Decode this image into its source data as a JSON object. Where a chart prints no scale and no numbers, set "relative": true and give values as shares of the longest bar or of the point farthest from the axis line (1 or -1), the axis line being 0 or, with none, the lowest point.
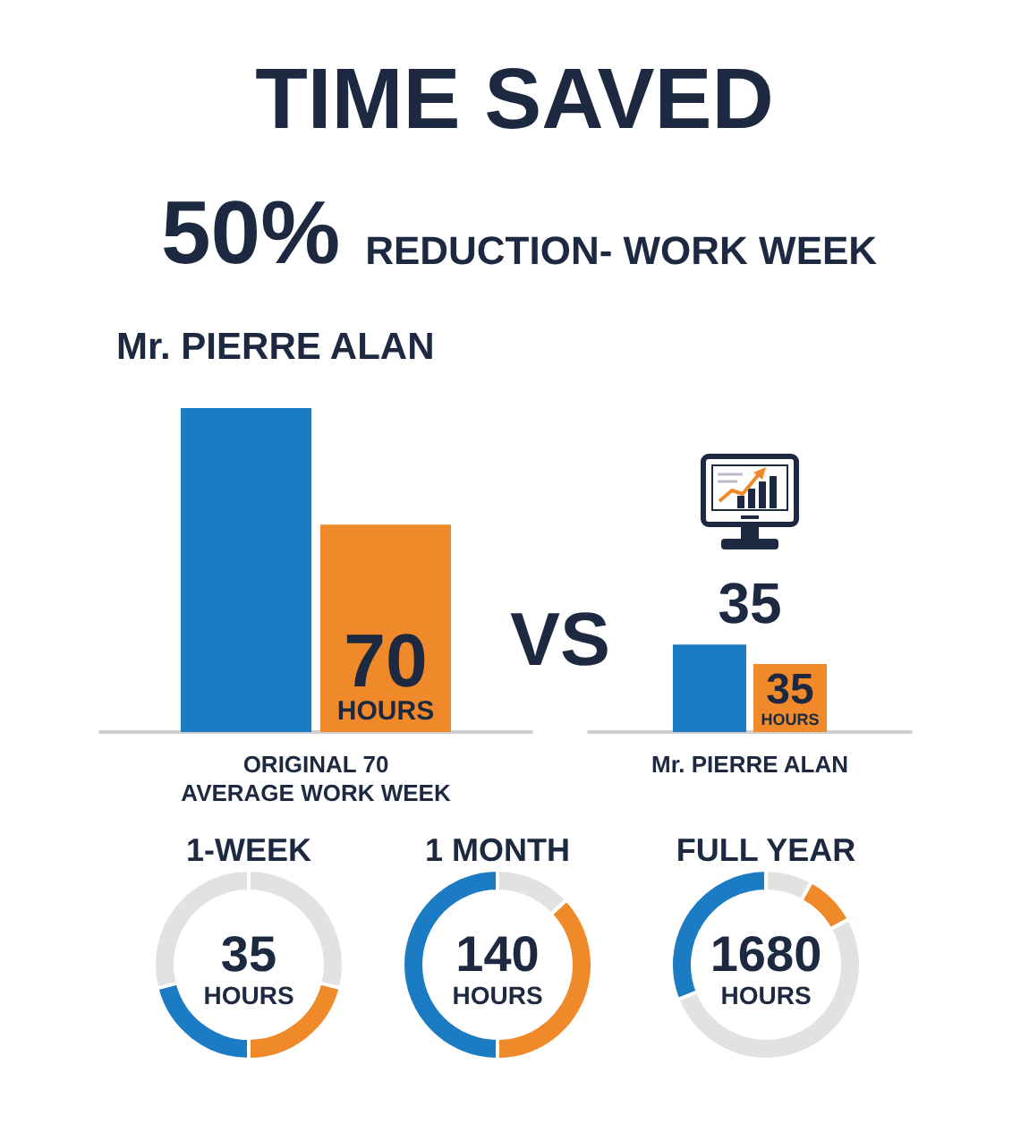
{
  "chart_data": [
    {
      "type": "bar",
      "title": "TIME SAVED",
      "annotations": [
        "50%",
        "REDUCTION- WORK WEEK",
        "Mr. PIERRE ALAN",
        "VS",
        "70\nHOURS",
        "35",
        "35\nHOURS"
      ],
      "categories": [
        "ORIGINAL 70\nAVERAGE WORK WEEK",
        "Mr. PIERRE ALAN"
      ],
      "relative": true,
      "series": [
        {
          "color": "#1b7cc4",
          "values": [
            1,
            0.27
          ]
        },
        {
          "color": "#f0892a",
          "values": [
            0.64,
            0.21
          ]
        }
      ]
    },
    {
      "type": "donut",
      "title": "1-WEEK",
      "categories": [
        null,
        null,
        null,
        null
      ],
      "values": [
        29,
        21,
        21,
        29
      ],
      "colors": [
        "#e2e2e2",
        "#f0892a",
        "#1b7cc4",
        "#e2e2e2"
      ],
      "annotations": [
        "35",
        "HOURS"
      ]
    },
    {
      "type": "donut",
      "title": "1 MONTH",
      "categories": [
        null,
        null,
        null
      ],
      "values": [
        13,
        37,
        50
      ],
      "colors": [
        "#e2e2e2",
        "#f0892a",
        "#1b7cc4"
      ],
      "annotations": [
        "140",
        "HOURS"
      ]
    },
    {
      "type": "donut",
      "title": "FULL YEAR",
      "categories": [
        null,
        null,
        null,
        null
      ],
      "values": [
        8,
        9,
        52,
        31
      ],
      "colors": [
        "#e2e2e2",
        "#f0892a",
        "#e2e2e2",
        "#1b7cc4"
      ],
      "annotations": [
        "1680",
        "HOURS"
      ]
    }
  ]
}
